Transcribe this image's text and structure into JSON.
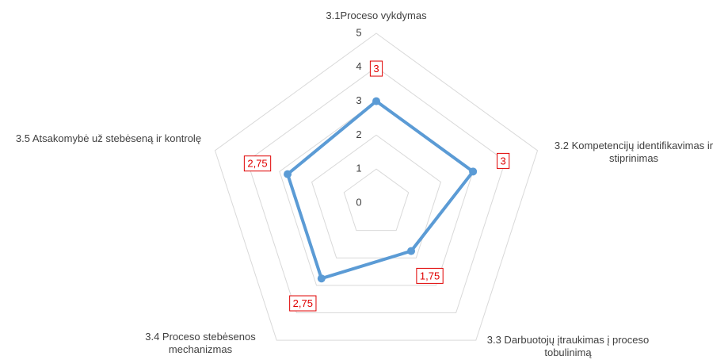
{
  "chart_data": {
    "type": "radar",
    "categories": [
      "3.1Proceso vykdymas",
      "3.2 Kompetencijų identifikavimas ir stiprinimas",
      "3.3 Darbuotojų įtraukimas į proceso tobulinimą",
      "3.4 Proceso stebėsenos mechanizmas",
      "3.5 Atsakomybė už stebėseną ir kontrolę"
    ],
    "values": [
      3,
      3,
      1.75,
      2.75,
      2.75
    ],
    "value_labels": [
      "3",
      "3",
      "1,75",
      "2,75",
      "2,75"
    ],
    "color": "#5b9bd5",
    "label_color": "#e00000",
    "ylim": [
      0,
      5
    ],
    "yticks": [
      0,
      1,
      2,
      3,
      4,
      5
    ],
    "grid": true
  }
}
